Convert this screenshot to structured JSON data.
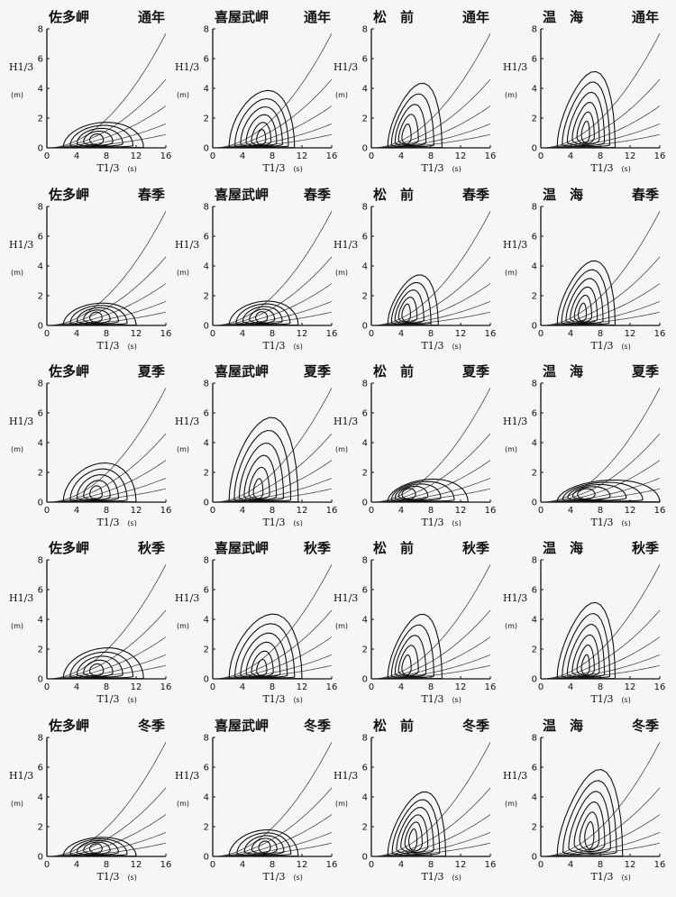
{
  "figure": {
    "x_label": "T1/3",
    "x_unit": "(s)",
    "y_label": "H1/3",
    "y_unit": "(m)"
  },
  "chart_data": [
    {
      "type": "contour",
      "title_left": "佐多岬",
      "title_right": "通年",
      "station": "佐多岬",
      "season": "通年",
      "xlim": [
        0,
        16
      ],
      "ylim": [
        0,
        8
      ],
      "xticks": [
        0,
        4,
        8,
        12,
        16
      ],
      "yticks": [
        0,
        2,
        4,
        6,
        8
      ],
      "peak": [
        6.5,
        0.6
      ],
      "max_extent": [
        13,
        2.6
      ],
      "tilt": 0.1,
      "levels": 5
    },
    {
      "type": "contour",
      "title_left": "喜屋武岬",
      "title_right": "通年",
      "station": "喜屋武岬",
      "season": "通年",
      "xlim": [
        0,
        16
      ],
      "ylim": [
        0,
        8
      ],
      "xticks": [
        0,
        4,
        8,
        12,
        16
      ],
      "yticks": [
        0,
        2,
        4,
        6,
        8
      ],
      "peak": [
        6.5,
        0.6
      ],
      "max_extent": [
        11,
        4.8
      ],
      "tilt": 0.3,
      "levels": 6
    },
    {
      "type": "contour",
      "title_left": "松　前",
      "title_right": "通年",
      "station": "松 前",
      "season": "通年",
      "xlim": [
        0,
        16
      ],
      "ylim": [
        0,
        8
      ],
      "xticks": [
        0,
        4,
        8,
        12,
        16
      ],
      "yticks": [
        0,
        2,
        4,
        6,
        8
      ],
      "peak": [
        4.5,
        0.8
      ],
      "max_extent": [
        9.5,
        4.6
      ],
      "tilt": 0.6,
      "levels": 5
    },
    {
      "type": "contour",
      "title_left": "温　海",
      "title_right": "通年",
      "station": "温 海",
      "season": "通年",
      "xlim": [
        0,
        16
      ],
      "ylim": [
        0,
        8
      ],
      "xticks": [
        0,
        4,
        8,
        12,
        16
      ],
      "yticks": [
        0,
        2,
        4,
        6,
        8
      ],
      "peak": [
        6,
        1
      ],
      "max_extent": [
        10,
        5.4
      ],
      "tilt": 0.65,
      "levels": 6
    },
    {
      "type": "contour",
      "title_left": "佐多岬",
      "title_right": "春季",
      "station": "佐多岬",
      "season": "春季",
      "xlim": [
        0,
        16
      ],
      "ylim": [
        0,
        8
      ],
      "xticks": [
        0,
        4,
        8,
        12,
        16
      ],
      "yticks": [
        0,
        2,
        4,
        6,
        8
      ],
      "peak": [
        6.5,
        0.6
      ],
      "max_extent": [
        12,
        2.3
      ],
      "tilt": 0.1,
      "levels": 5
    },
    {
      "type": "contour",
      "title_left": "喜屋武岬",
      "title_right": "春季",
      "station": "喜屋武岬",
      "season": "春季",
      "xlim": [
        0,
        16
      ],
      "ylim": [
        0,
        8
      ],
      "xticks": [
        0,
        4,
        8,
        12,
        16
      ],
      "yticks": [
        0,
        2,
        4,
        6,
        8
      ],
      "peak": [
        6.5,
        0.6
      ],
      "max_extent": [
        11.5,
        2.4
      ],
      "tilt": 0.15,
      "levels": 5
    },
    {
      "type": "contour",
      "title_left": "松　前",
      "title_right": "春季",
      "station": "松 前",
      "season": "春季",
      "xlim": [
        0,
        16
      ],
      "ylim": [
        0,
        8
      ],
      "xticks": [
        0,
        4,
        8,
        12,
        16
      ],
      "yticks": [
        0,
        2,
        4,
        6,
        8
      ],
      "peak": [
        4.5,
        0.8
      ],
      "max_extent": [
        9,
        3.8
      ],
      "tilt": 0.55,
      "levels": 5
    },
    {
      "type": "contour",
      "title_left": "温　海",
      "title_right": "春季",
      "station": "温 海",
      "season": "春季",
      "xlim": [
        0,
        16
      ],
      "ylim": [
        0,
        8
      ],
      "xticks": [
        0,
        4,
        8,
        12,
        16
      ],
      "yticks": [
        0,
        2,
        4,
        6,
        8
      ],
      "peak": [
        5.5,
        0.8
      ],
      "max_extent": [
        10,
        4.6
      ],
      "tilt": 0.6,
      "levels": 6
    },
    {
      "type": "contour",
      "title_left": "佐多岬",
      "title_right": "夏季",
      "station": "佐多岬",
      "season": "夏季",
      "xlim": [
        0,
        16
      ],
      "ylim": [
        0,
        8
      ],
      "xticks": [
        0,
        4,
        8,
        12,
        16
      ],
      "yticks": [
        0,
        2,
        4,
        6,
        8
      ],
      "peak": [
        6.5,
        0.6
      ],
      "max_extent": [
        12,
        3.6
      ],
      "tilt": 0.2,
      "levels": 5
    },
    {
      "type": "contour",
      "title_left": "喜屋武岬",
      "title_right": "夏季",
      "station": "喜屋武岬",
      "season": "夏季",
      "xlim": [
        0,
        16
      ],
      "ylim": [
        0,
        8
      ],
      "xticks": [
        0,
        4,
        8,
        12,
        16
      ],
      "yticks": [
        0,
        2,
        4,
        6,
        8
      ],
      "peak": [
        6,
        0.7
      ],
      "max_extent": [
        11.5,
        6.6
      ],
      "tilt": 0.4,
      "levels": 6
    },
    {
      "type": "contour",
      "title_left": "松　前",
      "title_right": "夏季",
      "station": "松 前",
      "season": "夏季",
      "xlim": [
        0,
        16
      ],
      "ylim": [
        0,
        8
      ],
      "xticks": [
        0,
        4,
        8,
        12,
        16
      ],
      "yticks": [
        0,
        2,
        4,
        6,
        8
      ],
      "peak": [
        4.5,
        0.6
      ],
      "max_extent": [
        13,
        2.2
      ],
      "tilt": 0.2,
      "levels": 5
    },
    {
      "type": "contour",
      "title_left": "温　海",
      "title_right": "夏季",
      "station": "温 海",
      "season": "夏季",
      "xlim": [
        0,
        16
      ],
      "ylim": [
        0,
        8
      ],
      "xticks": [
        0,
        4,
        8,
        12,
        16
      ],
      "yticks": [
        0,
        2,
        4,
        6,
        8
      ],
      "peak": [
        5.5,
        0.6
      ],
      "max_extent": [
        16,
        2.2
      ],
      "tilt": 0.15,
      "levels": 5
    },
    {
      "type": "contour",
      "title_left": "佐多岬",
      "title_right": "秋季",
      "station": "佐多岬",
      "season": "秋季",
      "xlim": [
        0,
        16
      ],
      "ylim": [
        0,
        8
      ],
      "xticks": [
        0,
        4,
        8,
        12,
        16
      ],
      "yticks": [
        0,
        2,
        4,
        6,
        8
      ],
      "peak": [
        6.5,
        0.6
      ],
      "max_extent": [
        13,
        3
      ],
      "tilt": 0.15,
      "levels": 5
    },
    {
      "type": "contour",
      "title_left": "喜屋武岬",
      "title_right": "秋季",
      "station": "喜屋武岬",
      "season": "秋季",
      "xlim": [
        0,
        16
      ],
      "ylim": [
        0,
        8
      ],
      "xticks": [
        0,
        4,
        8,
        12,
        16
      ],
      "yticks": [
        0,
        2,
        4,
        6,
        8
      ],
      "peak": [
        6.5,
        0.6
      ],
      "max_extent": [
        12,
        5.2
      ],
      "tilt": 0.35,
      "levels": 6
    },
    {
      "type": "contour",
      "title_left": "松　前",
      "title_right": "秋季",
      "station": "松 前",
      "season": "秋季",
      "xlim": [
        0,
        16
      ],
      "ylim": [
        0,
        8
      ],
      "xticks": [
        0,
        4,
        8,
        12,
        16
      ],
      "yticks": [
        0,
        2,
        4,
        6,
        8
      ],
      "peak": [
        4.5,
        0.8
      ],
      "max_extent": [
        9.5,
        4.6
      ],
      "tilt": 0.6,
      "levels": 5
    },
    {
      "type": "contour",
      "title_left": "温　海",
      "title_right": "秋季",
      "station": "温 海",
      "season": "秋季",
      "xlim": [
        0,
        16
      ],
      "ylim": [
        0,
        8
      ],
      "xticks": [
        0,
        4,
        8,
        12,
        16
      ],
      "yticks": [
        0,
        2,
        4,
        6,
        8
      ],
      "peak": [
        6,
        0.8
      ],
      "max_extent": [
        10,
        5.2
      ],
      "tilt": 0.65,
      "levels": 6
    },
    {
      "type": "contour",
      "title_left": "佐多岬",
      "title_right": "冬季",
      "station": "佐多岬",
      "season": "冬季",
      "xlim": [
        0,
        16
      ],
      "ylim": [
        0,
        8
      ],
      "xticks": [
        0,
        4,
        8,
        12,
        16
      ],
      "yticks": [
        0,
        2,
        4,
        6,
        8
      ],
      "peak": [
        6.5,
        0.6
      ],
      "max_extent": [
        12,
        2
      ],
      "tilt": 0.1,
      "levels": 5
    },
    {
      "type": "contour",
      "title_left": "喜屋武岬",
      "title_right": "冬季",
      "station": "喜屋武岬",
      "season": "冬季",
      "xlim": [
        0,
        16
      ],
      "ylim": [
        0,
        8
      ],
      "xticks": [
        0,
        4,
        8,
        12,
        16
      ],
      "yticks": [
        0,
        2,
        4,
        6,
        8
      ],
      "peak": [
        7,
        0.7
      ],
      "max_extent": [
        11.5,
        2.7
      ],
      "tilt": 0.15,
      "levels": 5
    },
    {
      "type": "contour",
      "title_left": "松　前",
      "title_right": "冬季",
      "station": "松 前",
      "season": "冬季",
      "xlim": [
        0,
        16
      ],
      "ylim": [
        0,
        8
      ],
      "xticks": [
        0,
        4,
        8,
        12,
        16
      ],
      "yticks": [
        0,
        2,
        4,
        6,
        8
      ],
      "peak": [
        5.5,
        1.2
      ],
      "max_extent": [
        10,
        5
      ],
      "tilt": 0.6,
      "levels": 6
    },
    {
      "type": "contour",
      "title_left": "温　海",
      "title_right": "冬季",
      "station": "温 海",
      "season": "冬季",
      "xlim": [
        0,
        16
      ],
      "ylim": [
        0,
        8
      ],
      "xticks": [
        0,
        4,
        8,
        12,
        16
      ],
      "yticks": [
        0,
        2,
        4,
        6,
        8
      ],
      "peak": [
        6.5,
        1.5
      ],
      "max_extent": [
        11,
        6.4
      ],
      "tilt": 0.7,
      "levels": 6
    }
  ]
}
